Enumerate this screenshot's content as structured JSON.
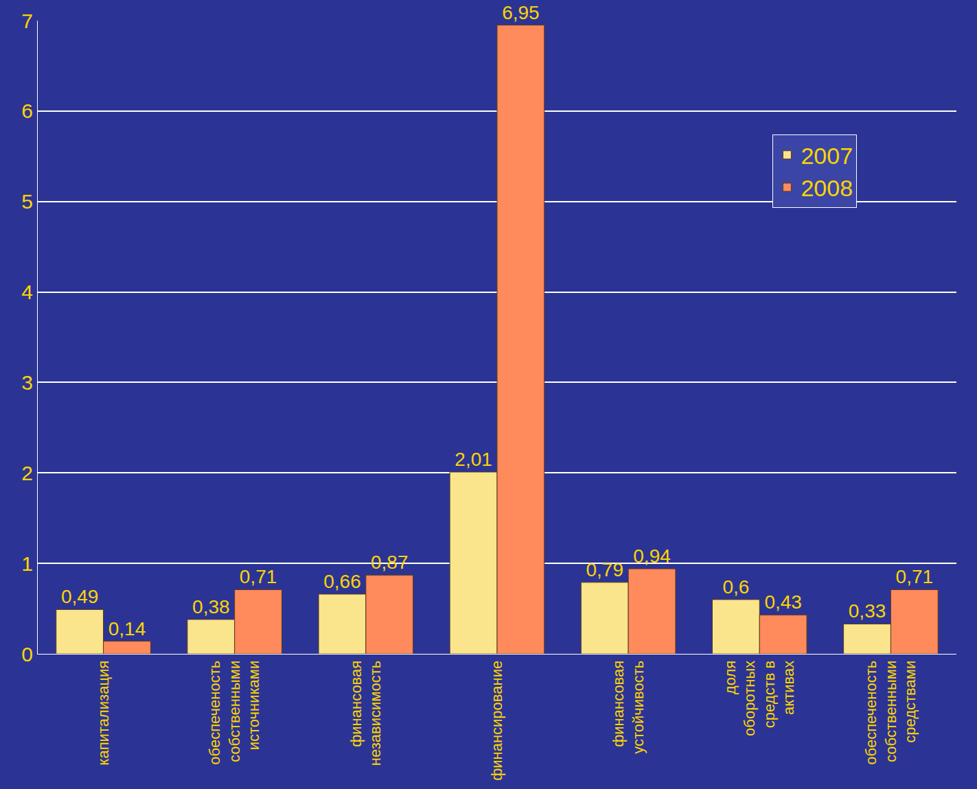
{
  "chart_data": {
    "type": "bar",
    "categories": [
      "капитализация",
      "обеспеченость собственными источниками",
      "финансовая независимость",
      "финансирование",
      "финансовая устойчивость",
      "доля оборотных средств в активах",
      "обеспеченость собственными средствами"
    ],
    "series": [
      {
        "name": "2007",
        "color": "#fbe58c",
        "values": [
          0.49,
          0.38,
          0.66,
          2.01,
          0.79,
          0.6,
          0.33
        ],
        "value_labels": [
          "0,49",
          "0,38",
          "0,66",
          "2,01",
          "0,79",
          "0,6",
          "0,33"
        ]
      },
      {
        "name": "2008",
        "color": "#ff8a5c",
        "values": [
          0.14,
          0.71,
          0.87,
          6.95,
          0.94,
          0.43,
          0.71
        ],
        "value_labels": [
          "0,14",
          "0,71",
          "0,87",
          "6,95",
          "0,94",
          "0,43",
          "0,71"
        ]
      }
    ],
    "ylim": [
      0,
      7
    ],
    "yticks": [
      0,
      1,
      2,
      3,
      4,
      5,
      6,
      7
    ],
    "grid": true,
    "legend": "top right",
    "data_labels": true
  }
}
